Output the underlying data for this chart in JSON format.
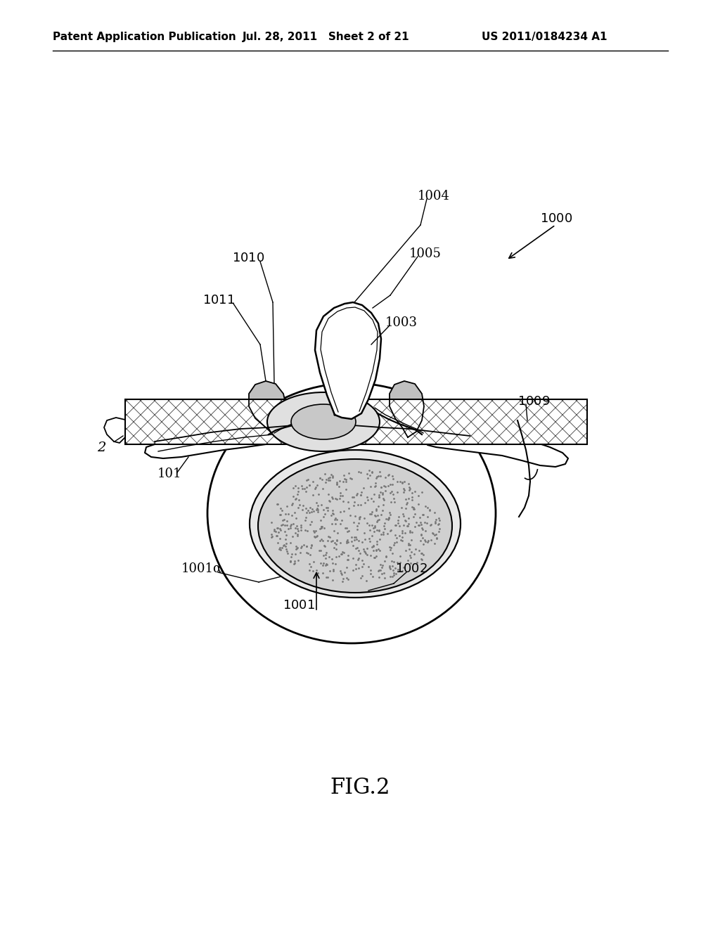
{
  "header_left": "Patent Application Publication",
  "header_center": "Jul. 28, 2011   Sheet 2 of 21",
  "header_right": "US 2011/0184234 A1",
  "figure_label": "FIG.2",
  "bg": "#ffffff",
  "lc": "#000000"
}
